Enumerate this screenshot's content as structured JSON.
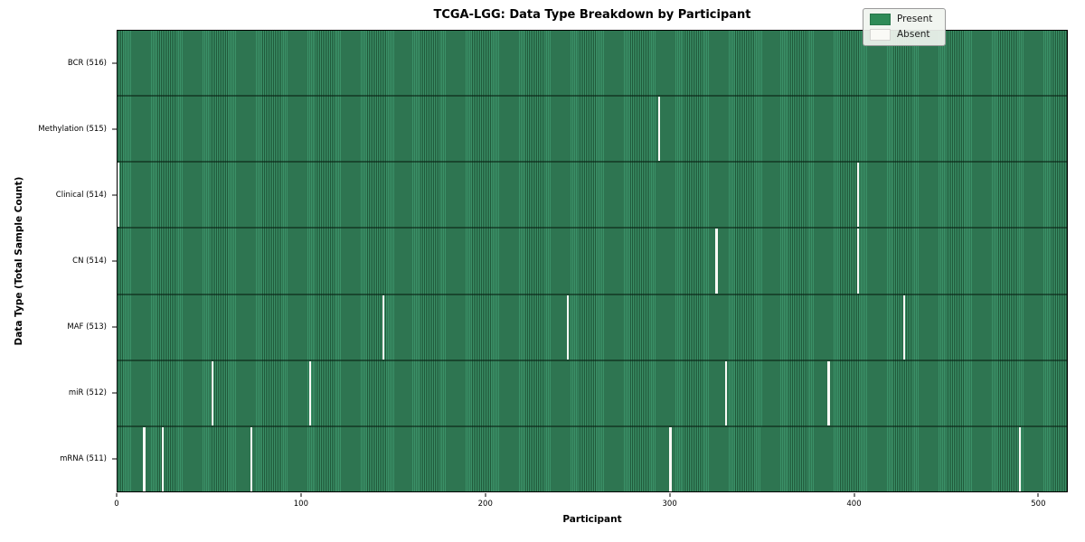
{
  "chart_data": {
    "type": "heatmap",
    "title": "TCGA-LGG: Data Type Breakdown by Participant",
    "xlabel": "Participant",
    "ylabel": "Data Type (Total Sample Count)",
    "n_participants": 516,
    "xlim": [
      0,
      516
    ],
    "x_ticks": [
      0,
      100,
      200,
      300,
      400,
      500
    ],
    "grid": false,
    "legend_position": "upper-right",
    "legend": [
      {
        "label": "Present",
        "color": "#2e8b57"
      },
      {
        "label": "Absent",
        "color": "#fafaf6"
      }
    ],
    "rows": [
      {
        "label": "BCR (516)",
        "total_samples": 516,
        "absent_participants": []
      },
      {
        "label": "Methylation (515)",
        "total_samples": 515,
        "absent_participants": [
          294
        ]
      },
      {
        "label": "Clinical (514)",
        "total_samples": 514,
        "absent_participants": [
          0,
          402
        ]
      },
      {
        "label": "CN (514)",
        "total_samples": 514,
        "absent_participants": [
          325,
          402
        ]
      },
      {
        "label": "MAF (513)",
        "total_samples": 513,
        "absent_participants": [
          144,
          244,
          427
        ]
      },
      {
        "label": "miR (512)",
        "total_samples": 512,
        "absent_participants": [
          51,
          104,
          330,
          386
        ]
      },
      {
        "label": "mRNA (511)",
        "total_samples": 511,
        "absent_participants": [
          14,
          24,
          72,
          300,
          490
        ]
      }
    ]
  }
}
